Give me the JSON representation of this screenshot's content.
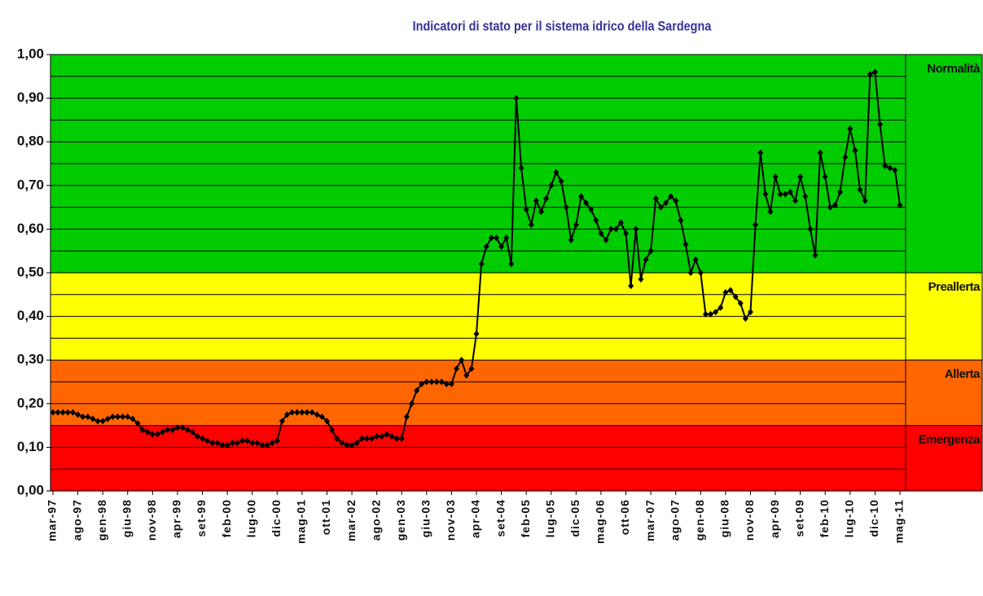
{
  "chart_data": {
    "type": "line",
    "title": "Indicatori di stato per il sistema idrico della Sardegna",
    "categories": [
      "mar-97",
      null,
      null,
      null,
      null,
      "ago-97",
      null,
      null,
      null,
      null,
      "gen-98",
      null,
      null,
      null,
      null,
      "giu-98",
      null,
      null,
      null,
      null,
      "nov-98",
      null,
      null,
      null,
      null,
      "apr-99",
      null,
      null,
      null,
      null,
      "set-99",
      null,
      null,
      null,
      null,
      "feb-00",
      null,
      null,
      null,
      null,
      "lug-00",
      null,
      null,
      null,
      null,
      "dic-00",
      null,
      null,
      null,
      null,
      "mag-01",
      null,
      null,
      null,
      null,
      "ott-01",
      null,
      null,
      null,
      null,
      "mar-02",
      null,
      null,
      null,
      null,
      "ago-02",
      null,
      null,
      null,
      null,
      "gen-03",
      null,
      null,
      null,
      null,
      "giu-03",
      null,
      null,
      null,
      null,
      "nov-03",
      null,
      null,
      null,
      null,
      "apr-04",
      null,
      null,
      null,
      null,
      "set-04",
      null,
      null,
      null,
      null,
      "feb-05",
      null,
      null,
      null,
      null,
      "lug-05",
      null,
      null,
      null,
      null,
      "dic-05",
      null,
      null,
      null,
      null,
      "mag-06",
      null,
      null,
      null,
      null,
      "ott-06",
      null,
      null,
      null,
      null,
      "mar-07",
      null,
      null,
      null,
      null,
      "ago-07",
      null,
      null,
      null,
      null,
      "gen-08",
      null,
      null,
      null,
      null,
      "giu-08",
      null,
      null,
      null,
      null,
      "nov-08",
      null,
      null,
      null,
      null,
      "apr-09",
      null,
      null,
      null,
      null,
      "set-09",
      null,
      null,
      null,
      null,
      "feb-10",
      null,
      null,
      null,
      null,
      "lug-10",
      null,
      null,
      null,
      null,
      "dic-10",
      null,
      null,
      null,
      null,
      "mag-11"
    ],
    "values": [
      0.18,
      0.18,
      0.18,
      0.18,
      0.18,
      0.175,
      0.17,
      0.17,
      0.165,
      0.16,
      0.16,
      0.165,
      0.17,
      0.17,
      0.17,
      0.17,
      0.165,
      0.155,
      0.14,
      0.135,
      0.13,
      0.13,
      0.135,
      0.14,
      0.14,
      0.145,
      0.145,
      0.14,
      0.135,
      0.125,
      0.12,
      0.115,
      0.11,
      0.11,
      0.105,
      0.105,
      0.11,
      0.11,
      0.115,
      0.115,
      0.11,
      0.11,
      0.105,
      0.105,
      0.11,
      0.115,
      0.16,
      0.175,
      0.18,
      0.18,
      0.18,
      0.18,
      0.18,
      0.175,
      0.17,
      0.16,
      0.14,
      0.12,
      0.11,
      0.105,
      0.105,
      0.11,
      0.12,
      0.12,
      0.12,
      0.125,
      0.125,
      0.13,
      0.125,
      0.12,
      0.12,
      0.17,
      0.2,
      0.23,
      0.245,
      0.25,
      0.25,
      0.25,
      0.25,
      0.245,
      0.245,
      0.28,
      0.3,
      0.265,
      0.28,
      0.36,
      0.52,
      0.56,
      0.58,
      0.58,
      0.56,
      0.58,
      0.52,
      0.9,
      0.74,
      0.645,
      0.61,
      0.665,
      0.64,
      0.67,
      0.7,
      0.73,
      0.71,
      0.65,
      0.575,
      0.61,
      0.675,
      0.66,
      0.645,
      0.62,
      0.59,
      0.575,
      0.6,
      0.6,
      0.615,
      0.59,
      0.47,
      0.6,
      0.485,
      0.53,
      0.55,
      0.67,
      0.65,
      0.66,
      0.675,
      0.665,
      0.62,
      0.565,
      0.5,
      0.53,
      0.5,
      0.405,
      0.405,
      0.41,
      0.42,
      0.455,
      0.46,
      0.445,
      0.43,
      0.395,
      0.41,
      0.61,
      0.775,
      0.68,
      0.64,
      0.72,
      0.68,
      0.68,
      0.685,
      0.665,
      0.72,
      0.675,
      0.6,
      0.54,
      0.775,
      0.72,
      0.65,
      0.655,
      0.685,
      0.765,
      0.83,
      0.78,
      0.69,
      0.665,
      0.955,
      0.96,
      0.84,
      0.745,
      0.74,
      0.735,
      0.655
    ],
    "color": "#000000",
    "ylim": [
      0,
      1
    ],
    "yticks": [
      {
        "value": 0,
        "label": "0,00"
      },
      {
        "value": 0.1,
        "label": "0,10"
      },
      {
        "value": 0.2,
        "label": "0,20"
      },
      {
        "value": 0.3,
        "label": "0,30"
      },
      {
        "value": 0.4,
        "label": "0,40"
      },
      {
        "value": 0.5,
        "label": "0,50"
      },
      {
        "value": 0.6,
        "label": "0,60"
      },
      {
        "value": 0.7,
        "label": "0,70"
      },
      {
        "value": 0.8,
        "label": "0,80"
      },
      {
        "value": 0.9,
        "label": "0,90"
      },
      {
        "value": 1,
        "label": "1,00"
      }
    ],
    "minor_yticks": [
      0.05,
      0.15,
      0.25,
      0.35,
      0.45,
      0.55,
      0.65,
      0.75,
      0.85,
      0.95
    ],
    "grid": true,
    "zones": [
      {
        "name": "Normalità",
        "from": 0.5,
        "to": 1,
        "color": "#00cc00"
      },
      {
        "name": "Preallerta",
        "from": 0.3,
        "to": 0.5,
        "color": "#ffff00"
      },
      {
        "name": "Allerta",
        "from": 0.15,
        "to": 0.3,
        "color": "#ff6600"
      },
      {
        "name": "Emergenza",
        "from": 0,
        "to": 0.15,
        "color": "#ff0000"
      }
    ]
  }
}
